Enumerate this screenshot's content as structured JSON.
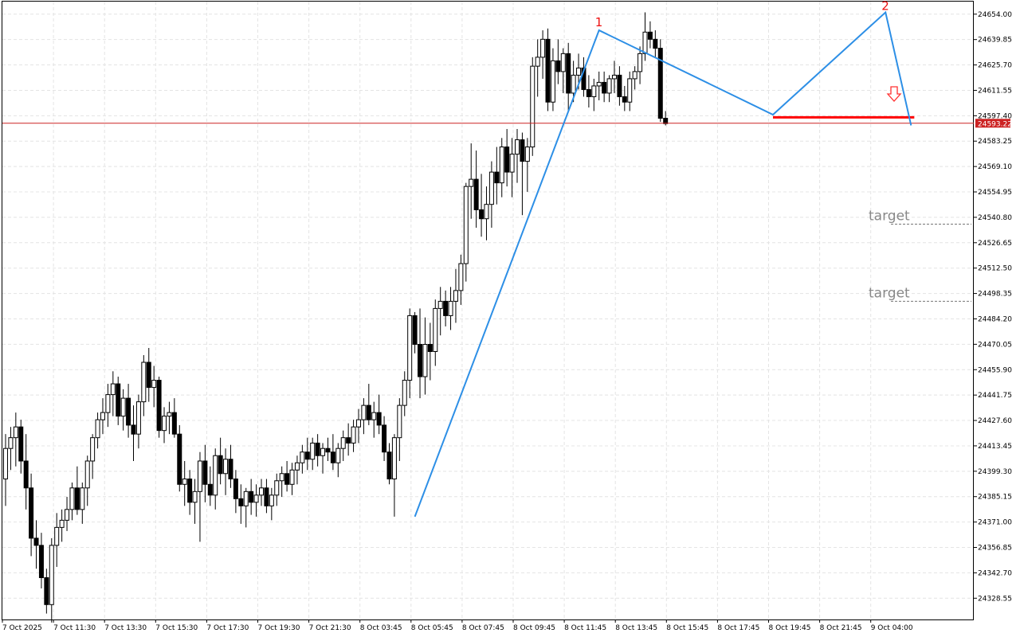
{
  "chart_data": {
    "type": "candlestick",
    "symbol_note": "",
    "ylim": [
      24316.7,
      24661.0
    ],
    "y_ticks": [
      "24654.00",
      "24639.85",
      "24625.70",
      "24611.55",
      "24597.40",
      "24583.25",
      "24569.10",
      "24554.95",
      "24540.80",
      "24526.65",
      "24512.50",
      "24498.35",
      "24484.20",
      "24470.05",
      "24455.90",
      "24441.75",
      "24427.60",
      "24413.45",
      "24399.30",
      "24385.15",
      "24371.00",
      "24356.85",
      "24342.70",
      "24328.55"
    ],
    "x_ticks": [
      "7 Oct 2025",
      "7 Oct 11:30",
      "7 Oct 13:30",
      "7 Oct 15:30",
      "7 Oct 17:30",
      "7 Oct 19:30",
      "7 Oct 21:30",
      "8 Oct 03:45",
      "8 Oct 05:45",
      "8 Oct 07:45",
      "8 Oct 09:45",
      "8 Oct 11:45",
      "8 Oct 13:45",
      "8 Oct 15:45",
      "8 Oct 17:45",
      "8 Oct 19:45",
      "8 Oct 21:45",
      "9 Oct 04:00"
    ],
    "current_price": "24593.22",
    "grid": true,
    "candles": [
      [
        24395,
        24420,
        24380,
        24412
      ],
      [
        24412,
        24424,
        24400,
        24418
      ],
      [
        24418,
        24432,
        24402,
        24424
      ],
      [
        24424,
        24428,
        24398,
        24405
      ],
      [
        24405,
        24420,
        24378,
        24390
      ],
      [
        24390,
        24398,
        24352,
        24362
      ],
      [
        24362,
        24372,
        24345,
        24358
      ],
      [
        24358,
        24365,
        24334,
        24340
      ],
      [
        24340,
        24345,
        24320,
        24325
      ],
      [
        24325,
        24362,
        24315,
        24358
      ],
      [
        24358,
        24376,
        24346,
        24368
      ],
      [
        24368,
        24378,
        24360,
        24372
      ],
      [
        24372,
        24385,
        24366,
        24378
      ],
      [
        24378,
        24393,
        24372,
        24390
      ],
      [
        24390,
        24402,
        24375,
        24378
      ],
      [
        24378,
        24393,
        24370,
        24390
      ],
      [
        24390,
        24408,
        24380,
        24405
      ],
      [
        24405,
        24420,
        24395,
        24418
      ],
      [
        24418,
        24432,
        24412,
        24428
      ],
      [
        24428,
        24440,
        24420,
        24432
      ],
      [
        24432,
        24448,
        24424,
        24442
      ],
      [
        24442,
        24455,
        24430,
        24448
      ],
      [
        24448,
        24452,
        24425,
        24430
      ],
      [
        24430,
        24445,
        24422,
        24440
      ],
      [
        24440,
        24448,
        24418,
        24425
      ],
      [
        24425,
        24436,
        24405,
        24420
      ],
      [
        24420,
        24442,
        24412,
        24438
      ],
      [
        24438,
        24464,
        24430,
        24460
      ],
      [
        24460,
        24468,
        24438,
        24446
      ],
      [
        24446,
        24458,
        24435,
        24450
      ],
      [
        24450,
        24452,
        24418,
        24422
      ],
      [
        24422,
        24435,
        24415,
        24430
      ],
      [
        24430,
        24438,
        24420,
        24432
      ],
      [
        24432,
        24440,
        24418,
        24420
      ],
      [
        24420,
        24425,
        24388,
        24392
      ],
      [
        24392,
        24405,
        24380,
        24395
      ],
      [
        24395,
        24400,
        24375,
        24382
      ],
      [
        24382,
        24395,
        24370,
        24388
      ],
      [
        24388,
        24410,
        24360,
        24405
      ],
      [
        24405,
        24414,
        24382,
        24392
      ],
      [
        24392,
        24402,
        24380,
        24386
      ],
      [
        24386,
        24412,
        24378,
        24408
      ],
      [
        24408,
        24418,
        24392,
        24398
      ],
      [
        24398,
        24412,
        24386,
        24406
      ],
      [
        24406,
        24414,
        24390,
        24395
      ],
      [
        24395,
        24400,
        24376,
        24384
      ],
      [
        24384,
        24392,
        24370,
        24380
      ],
      [
        24380,
        24390,
        24368,
        24388
      ],
      [
        24388,
        24395,
        24375,
        24382
      ],
      [
        24382,
        24392,
        24374,
        24386
      ],
      [
        24386,
        24395,
        24380,
        24390
      ],
      [
        24390,
        24395,
        24376,
        24380
      ],
      [
        24380,
        24390,
        24372,
        24386
      ],
      [
        24386,
        24398,
        24380,
        24394
      ],
      [
        24394,
        24402,
        24385,
        24398
      ],
      [
        24398,
        24405,
        24388,
        24392
      ],
      [
        24392,
        24404,
        24386,
        24400
      ],
      [
        24400,
        24408,
        24392,
        24404
      ],
      [
        24404,
        24414,
        24398,
        24410
      ],
      [
        24410,
        24418,
        24400,
        24406
      ],
      [
        24406,
        24418,
        24400,
        24415
      ],
      [
        24415,
        24420,
        24402,
        24408
      ],
      [
        24408,
        24415,
        24398,
        24412
      ],
      [
        24412,
        24418,
        24405,
        24410
      ],
      [
        24410,
        24420,
        24400,
        24404
      ],
      [
        24404,
        24415,
        24396,
        24412
      ],
      [
        24412,
        24422,
        24405,
        24418
      ],
      [
        24418,
        24426,
        24408,
        24415
      ],
      [
        24415,
        24428,
        24410,
        24424
      ],
      [
        24424,
        24434,
        24415,
        24428
      ],
      [
        24428,
        24440,
        24420,
        24436
      ],
      [
        24436,
        24448,
        24425,
        24428
      ],
      [
        24428,
        24438,
        24418,
        24432
      ],
      [
        24432,
        24442,
        24420,
        24425
      ],
      [
        24425,
        24430,
        24405,
        24410
      ],
      [
        24410,
        24415,
        24392,
        24395
      ],
      [
        24395,
        24420,
        24374,
        24418
      ],
      [
        24418,
        24440,
        24405,
        24436
      ],
      [
        24436,
        24455,
        24430,
        24450
      ],
      [
        24450,
        24490,
        24440,
        24486
      ],
      [
        24486,
        24488,
        24465,
        24470
      ],
      [
        24470,
        24490,
        24440,
        24452
      ],
      [
        24452,
        24485,
        24442,
        24470
      ],
      [
        24470,
        24482,
        24450,
        24466
      ],
      [
        24466,
        24495,
        24458,
        24490
      ],
      [
        24490,
        24502,
        24475,
        24494
      ],
      [
        24494,
        24500,
        24480,
        24486
      ],
      [
        24486,
        24502,
        24478,
        24494
      ],
      [
        24494,
        24512,
        24482,
        24500
      ],
      [
        24500,
        24520,
        24492,
        24515
      ],
      [
        24515,
        24560,
        24505,
        24558
      ],
      [
        24558,
        24582,
        24540,
        24562
      ],
      [
        24562,
        24578,
        24535,
        24545
      ],
      [
        24545,
        24565,
        24530,
        24540
      ],
      [
        24540,
        24558,
        24528,
        24548
      ],
      [
        24548,
        24572,
        24535,
        24566
      ],
      [
        24566,
        24580,
        24548,
        24560
      ],
      [
        24560,
        24585,
        24552,
        24580
      ],
      [
        24580,
        24590,
        24558,
        24566
      ],
      [
        24566,
        24585,
        24552,
        24576
      ],
      [
        24576,
        24590,
        24560,
        24584
      ],
      [
        24584,
        24588,
        24542,
        24572
      ],
      [
        24572,
        24585,
        24555,
        24580
      ],
      [
        24580,
        24630,
        24575,
        24625
      ],
      [
        24625,
        24640,
        24608,
        24630
      ],
      [
        24630,
        24645,
        24618,
        24640
      ],
      [
        24640,
        24646,
        24600,
        24605
      ],
      [
        24605,
        24635,
        24600,
        24628
      ],
      [
        24628,
        24640,
        24615,
        24622
      ],
      [
        24622,
        24635,
        24610,
        24632
      ],
      [
        24632,
        24638,
        24600,
        24610
      ],
      [
        24610,
        24628,
        24605,
        24620
      ],
      [
        24620,
        24632,
        24612,
        24624
      ],
      [
        24624,
        24630,
        24608,
        24612
      ],
      [
        24612,
        24620,
        24602,
        24608
      ],
      [
        24608,
        24618,
        24600,
        24614
      ],
      [
        24614,
        24622,
        24606,
        24616
      ],
      [
        24616,
        24622,
        24605,
        24610
      ],
      [
        24610,
        24620,
        24605,
        24618
      ],
      [
        24618,
        24628,
        24610,
        24620
      ],
      [
        24620,
        24625,
        24603,
        24608
      ],
      [
        24608,
        24614,
        24600,
        24605
      ],
      [
        24605,
        24622,
        24600,
        24618
      ],
      [
        24618,
        24625,
        24612,
        24622
      ],
      [
        24622,
        24636,
        24615,
        24632
      ],
      [
        24632,
        24655,
        24628,
        24644
      ],
      [
        24644,
        24650,
        24635,
        24640
      ],
      [
        24640,
        24645,
        24630,
        24635
      ],
      [
        24635,
        24640,
        24594,
        24596
      ],
      [
        24596,
        24600,
        24592,
        24593
      ]
    ]
  },
  "annotations": {
    "wave_label_1": "1",
    "wave_label_2": "2",
    "target_label_1": "target",
    "target_label_2": "target",
    "target_level_1": 24537,
    "target_level_2": 24494,
    "neckline_level": 24596.5,
    "zigzag_points": [
      [
        24374,
        80
      ],
      [
        24645,
        116
      ],
      [
        24598,
        150
      ],
      [
        24655,
        172
      ],
      [
        24592,
        177
      ]
    ],
    "colors": {
      "zigzag": "#2d8fe6",
      "neckline": "#ff0000",
      "current_price_line": "#cc2222",
      "current_price_tag": "#cc2222",
      "arrow": "#ff3030",
      "target_text": "#888888",
      "target_line": "#777777",
      "grid": "#e4e4e4"
    },
    "arrow_icon": "down-arrow-icon"
  }
}
